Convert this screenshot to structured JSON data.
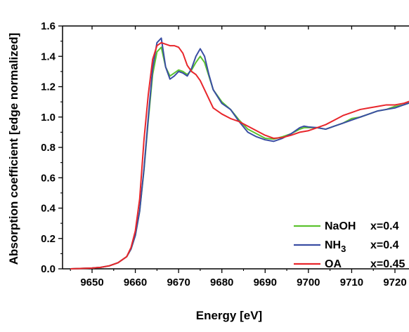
{
  "chart_data": {
    "type": "line",
    "xlabel": "Energy  [eV]",
    "ylabel": "Absorption coefficient  [edge normalized]",
    "xlim": [
      9645,
      9724
    ],
    "ylim": [
      0.0,
      1.6
    ],
    "xticks": [
      9650,
      9660,
      9670,
      9680,
      9690,
      9700,
      9710,
      9720
    ],
    "yticks": [
      0.0,
      0.2,
      0.4,
      0.6,
      0.8,
      1.0,
      1.2,
      1.4,
      1.6
    ],
    "ytick_labels": [
      "0.0",
      "0.2",
      "0.4",
      "0.6",
      "0.8",
      "1.0",
      "1.2",
      "1.4",
      "1.6"
    ],
    "grid": false,
    "legend_position": "bottom-right",
    "series": [
      {
        "name": "NaOH",
        "subscript": "",
        "note": "x=0.4",
        "color": "#5cc22f",
        "x": [
          9645,
          9650,
          9652,
          9654,
          9656,
          9658,
          9659,
          9660,
          9661,
          9662,
          9663,
          9664,
          9665,
          9666,
          9667,
          9668,
          9669,
          9670,
          9671,
          9672,
          9673,
          9674,
          9675,
          9676,
          9677,
          9678,
          9680,
          9682,
          9684,
          9686,
          9688,
          9690,
          9692,
          9694,
          9696,
          9698,
          9699,
          9700,
          9702,
          9704,
          9706,
          9708,
          9710,
          9712,
          9714,
          9716,
          9718,
          9720,
          9722,
          9724
        ],
        "y": [
          0.0,
          0.005,
          0.01,
          0.02,
          0.04,
          0.08,
          0.13,
          0.22,
          0.38,
          0.65,
          0.98,
          1.28,
          1.43,
          1.46,
          1.33,
          1.27,
          1.29,
          1.31,
          1.3,
          1.28,
          1.31,
          1.36,
          1.4,
          1.36,
          1.27,
          1.18,
          1.1,
          1.05,
          0.98,
          0.92,
          0.89,
          0.86,
          0.855,
          0.87,
          0.89,
          0.92,
          0.93,
          0.93,
          0.93,
          0.92,
          0.94,
          0.96,
          0.99,
          1.0,
          1.02,
          1.04,
          1.05,
          1.07,
          1.08,
          1.1
        ]
      },
      {
        "name": "NH",
        "subscript": "3",
        "note": "x=0.4",
        "color": "#3a4ea3",
        "x": [
          9645,
          9650,
          9652,
          9654,
          9656,
          9658,
          9659,
          9660,
          9661,
          9662,
          9663,
          9664,
          9665,
          9666,
          9667,
          9668,
          9669,
          9670,
          9671,
          9672,
          9673,
          9674,
          9675,
          9676,
          9677,
          9678,
          9680,
          9682,
          9684,
          9686,
          9688,
          9690,
          9692,
          9694,
          9696,
          9698,
          9699,
          9700,
          9702,
          9704,
          9706,
          9708,
          9710,
          9712,
          9714,
          9716,
          9718,
          9720,
          9722,
          9724
        ],
        "y": [
          0.0,
          0.005,
          0.01,
          0.02,
          0.04,
          0.08,
          0.13,
          0.22,
          0.38,
          0.66,
          1.0,
          1.32,
          1.49,
          1.52,
          1.33,
          1.25,
          1.27,
          1.3,
          1.29,
          1.27,
          1.32,
          1.4,
          1.45,
          1.4,
          1.28,
          1.18,
          1.09,
          1.05,
          0.97,
          0.9,
          0.87,
          0.85,
          0.84,
          0.86,
          0.89,
          0.93,
          0.94,
          0.935,
          0.93,
          0.92,
          0.94,
          0.96,
          0.98,
          1.0,
          1.02,
          1.04,
          1.05,
          1.06,
          1.08,
          1.1
        ]
      },
      {
        "name": "OA",
        "subscript": "",
        "note": "x=0.45",
        "color": "#e8262b",
        "x": [
          9645,
          9650,
          9652,
          9654,
          9656,
          9658,
          9659,
          9660,
          9661,
          9662,
          9663,
          9664,
          9665,
          9666,
          9667,
          9668,
          9669,
          9670,
          9671,
          9672,
          9673,
          9674,
          9675,
          9676,
          9677,
          9678,
          9680,
          9682,
          9684,
          9686,
          9688,
          9690,
          9692,
          9694,
          9696,
          9698,
          9700,
          9702,
          9704,
          9706,
          9708,
          9710,
          9712,
          9714,
          9716,
          9718,
          9720,
          9722,
          9724
        ],
        "y": [
          0.0,
          0.005,
          0.01,
          0.02,
          0.04,
          0.08,
          0.14,
          0.25,
          0.46,
          0.85,
          1.15,
          1.38,
          1.47,
          1.49,
          1.48,
          1.47,
          1.47,
          1.46,
          1.42,
          1.34,
          1.3,
          1.28,
          1.24,
          1.18,
          1.12,
          1.06,
          1.02,
          0.99,
          0.97,
          0.94,
          0.91,
          0.88,
          0.86,
          0.865,
          0.88,
          0.9,
          0.91,
          0.93,
          0.95,
          0.98,
          1.01,
          1.03,
          1.05,
          1.06,
          1.07,
          1.08,
          1.08,
          1.09,
          1.11
        ]
      }
    ]
  }
}
